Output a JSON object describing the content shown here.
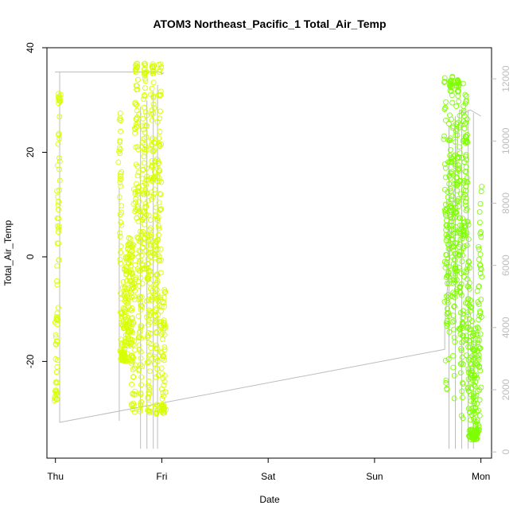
{
  "chart_data": {
    "type": "scatter",
    "title": "ATOM3 Northeast_Pacific_1 Total_Air_Temp",
    "xlabel": "Date",
    "ylabel": "Total_Air_Temp",
    "x_ticks": [
      "Thu",
      "Fri",
      "Sat",
      "Sun",
      "Mon"
    ],
    "x_range_days": [
      -0.08,
      4.1
    ],
    "ylim": [
      -38.5,
      40
    ],
    "y_ticks": [
      -20,
      0,
      20,
      40
    ],
    "y2lim": [
      -200,
      13000
    ],
    "y2_ticks": [
      0,
      2000,
      4000,
      6000,
      8000,
      10000,
      12000
    ],
    "grid": false,
    "legend": "none",
    "colors": {
      "green": "#7fff00",
      "yellow_green": "#d8ff00",
      "line": "#bdbdbd",
      "axis": "#000000"
    },
    "series": [
      {
        "kind": "points",
        "color_key": "yellow_green",
        "segments": [
          {
            "x0": 0.0,
            "x1": 0.04,
            "ymin": -27.5,
            "ymax": 31.2,
            "wave": [
              [
                0.0,
                -25
              ],
              [
                0.01,
                -27
              ],
              [
                0.02,
                2
              ],
              [
                0.03,
                20
              ],
              [
                0.04,
                31
              ]
            ]
          },
          {
            "x0": 0.6,
            "x1": 0.72,
            "ymin": -20,
            "ymax": 27.5,
            "wave": [
              [
                0.6,
                27
              ],
              [
                0.61,
                15
              ],
              [
                0.62,
                -20
              ],
              [
                0.64,
                -18
              ],
              [
                0.66,
                -13
              ],
              [
                0.68,
                -10
              ],
              [
                0.7,
                -7
              ],
              [
                0.72,
                -13
              ]
            ]
          },
          {
            "x0": 0.72,
            "x1": 1.03,
            "ymin": -30,
            "ymax": 37,
            "wave": [
              [
                0.74,
                -15
              ],
              [
                0.76,
                35
              ],
              [
                0.8,
                -20
              ],
              [
                0.84,
                30
              ],
              [
                0.88,
                -24
              ],
              [
                0.92,
                37
              ],
              [
                0.95,
                -26
              ],
              [
                0.98,
                33
              ],
              [
                1.0,
                -30
              ],
              [
                1.02,
                -24
              ]
            ]
          }
        ]
      },
      {
        "kind": "points",
        "color_key": "green",
        "segments": [
          {
            "x0": 3.66,
            "x1": 4.0,
            "ymin": -35,
            "ymax": 34.5,
            "wave": [
              [
                3.66,
                30
              ],
              [
                3.68,
                -14
              ],
              [
                3.72,
                28
              ],
              [
                3.75,
                -12
              ],
              [
                3.78,
                34
              ],
              [
                3.82,
                -19
              ],
              [
                3.85,
                26
              ],
              [
                3.88,
                -10
              ],
              [
                3.9,
                -28
              ],
              [
                3.92,
                -32
              ],
              [
                3.95,
                -35
              ],
              [
                3.98,
                -20
              ],
              [
                4.0,
                -1
              ]
            ]
          }
        ]
      },
      {
        "kind": "line",
        "color_key": "line",
        "axis": "right",
        "points": [
          [
            0.0,
            12200
          ],
          [
            0.0,
            12220
          ],
          [
            0.02,
            12220
          ],
          [
            1.0,
            12220
          ],
          [
            1.0,
            12150
          ],
          [
            1.02,
            12200
          ],
          [
            0.04,
            12220
          ],
          [
            0.04,
            950
          ],
          [
            3.66,
            3300
          ],
          [
            3.66,
            4000
          ],
          [
            3.8,
            11000
          ],
          [
            3.85,
            10900
          ],
          [
            3.9,
            11000
          ],
          [
            4.0,
            10800
          ]
        ],
        "drops": [
          {
            "x": 0.6,
            "y_top": 8500,
            "y_bottom": 1000
          },
          {
            "x": 0.8,
            "y_top": 11100,
            "y_bottom": 100
          },
          {
            "x": 0.86,
            "y_top": 11300,
            "y_bottom": 100
          },
          {
            "x": 0.92,
            "y_top": 11600,
            "y_bottom": 100
          },
          {
            "x": 0.96,
            "y_top": 11800,
            "y_bottom": 100
          },
          {
            "x": 3.7,
            "y_top": 10500,
            "y_bottom": 100
          },
          {
            "x": 3.76,
            "y_top": 10800,
            "y_bottom": 100
          },
          {
            "x": 3.82,
            "y_top": 11000,
            "y_bottom": 100
          },
          {
            "x": 3.88,
            "y_top": 11000,
            "y_bottom": 100
          },
          {
            "x": 3.93,
            "y_top": 10900,
            "y_bottom": 100
          }
        ]
      }
    ]
  }
}
